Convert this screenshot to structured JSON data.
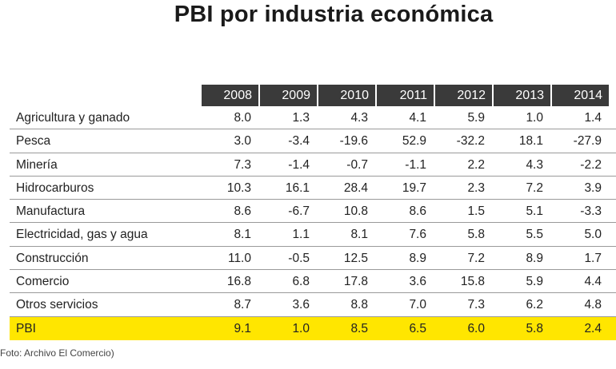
{
  "title": "PBI por industria económica",
  "credit": "Foto: Archivo El Comercio)",
  "chart_data": {
    "type": "table",
    "title": "PBI por industria económica",
    "columns": [
      "2008",
      "2009",
      "2010",
      "2011",
      "2012",
      "2013",
      "2014"
    ],
    "rows": [
      {
        "label": "Agricultura y ganado",
        "values": [
          "8.0",
          "1.3",
          "4.3",
          "4.1",
          "5.9",
          "1.0",
          "1.4"
        ]
      },
      {
        "label": "Pesca",
        "values": [
          "3.0",
          "-3.4",
          "-19.6",
          "52.9",
          "-32.2",
          "18.1",
          "-27.9"
        ]
      },
      {
        "label": "Minería",
        "values": [
          "7.3",
          "-1.4",
          "-0.7",
          "-1.1",
          "2.2",
          "4.3",
          "-2.2"
        ]
      },
      {
        "label": "Hidrocarburos",
        "values": [
          "10.3",
          "16.1",
          "28.4",
          "19.7",
          "2.3",
          "7.2",
          "3.9"
        ]
      },
      {
        "label": "Manufactura",
        "values": [
          "8.6",
          "-6.7",
          "10.8",
          "8.6",
          "1.5",
          "5.1",
          "-3.3"
        ]
      },
      {
        "label": "Electricidad, gas y agua",
        "values": [
          "8.1",
          "1.1",
          "8.1",
          "7.6",
          "5.8",
          "5.5",
          "5.0"
        ]
      },
      {
        "label": "Construcción",
        "values": [
          "11.0",
          "-0.5",
          "12.5",
          "8.9",
          "7.2",
          "8.9",
          "1.7"
        ]
      },
      {
        "label": "Comercio",
        "values": [
          "16.8",
          "6.8",
          "17.8",
          "3.6",
          "15.8",
          "5.9",
          "4.4"
        ]
      },
      {
        "label": "Otros servicios",
        "values": [
          "8.7",
          "3.6",
          "8.8",
          "7.0",
          "7.3",
          "6.2",
          "4.8"
        ]
      },
      {
        "label": "PBI",
        "values": [
          "9.1",
          "1.0",
          "8.5",
          "6.5",
          "6.0",
          "5.8",
          "2.4"
        ],
        "highlight": true
      }
    ],
    "colors": {
      "header_bg": "#3a3a3a",
      "header_text": "#ffffff",
      "highlight": "#ffe600"
    }
  }
}
